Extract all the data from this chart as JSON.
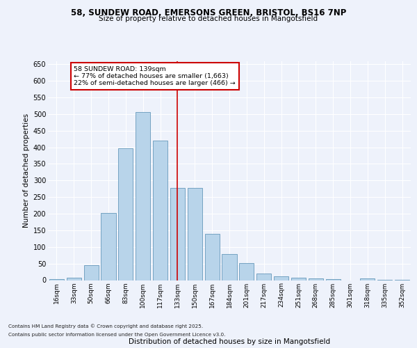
{
  "title_line1": "58, SUNDEW ROAD, EMERSONS GREEN, BRISTOL, BS16 7NP",
  "title_line2": "Size of property relative to detached houses in Mangotsfield",
  "xlabel": "Distribution of detached houses by size in Mangotsfield",
  "ylabel": "Number of detached properties",
  "categories": [
    "16sqm",
    "33sqm",
    "50sqm",
    "66sqm",
    "83sqm",
    "100sqm",
    "117sqm",
    "133sqm",
    "150sqm",
    "167sqm",
    "184sqm",
    "201sqm",
    "217sqm",
    "234sqm",
    "251sqm",
    "268sqm",
    "285sqm",
    "301sqm",
    "318sqm",
    "335sqm",
    "352sqm"
  ],
  "values": [
    4,
    8,
    45,
    202,
    397,
    507,
    421,
    277,
    277,
    140,
    79,
    51,
    20,
    12,
    7,
    5,
    3,
    0,
    5,
    2,
    2
  ],
  "bar_color": "#b8d4ea",
  "bar_edge_color": "#6699bb",
  "background_color": "#eef2fb",
  "grid_color": "#ffffff",
  "annotation_text": "58 SUNDEW ROAD: 139sqm\n← 77% of detached houses are smaller (1,663)\n22% of semi-detached houses are larger (466) →",
  "annotation_box_color": "#ffffff",
  "annotation_box_edge": "#cc0000",
  "vline_x_index": 7,
  "vline_color": "#cc0000",
  "ylim": [
    0,
    660
  ],
  "yticks": [
    0,
    50,
    100,
    150,
    200,
    250,
    300,
    350,
    400,
    450,
    500,
    550,
    600,
    650
  ],
  "footnote1": "Contains HM Land Registry data © Crown copyright and database right 2025.",
  "footnote2": "Contains public sector information licensed under the Open Government Licence v3.0."
}
